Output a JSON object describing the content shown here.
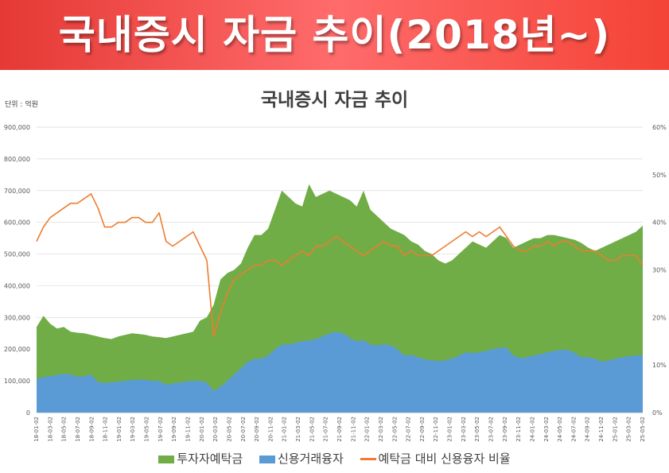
{
  "banner": {
    "text": "국내증시 자금 추이(2018년~)"
  },
  "chart_data": {
    "type": "area",
    "title": "국내증시 자금 추이",
    "unit_label": "단위 : 억원",
    "colors": {
      "deposits": "#70ad47",
      "credit": "#5b9bd5",
      "ratio": "#ed7d31"
    },
    "left_axis": {
      "min": 0,
      "max": 900000,
      "ticks": [
        "0",
        "100,000",
        "200,000",
        "300,000",
        "400,000",
        "500,000",
        "600,000",
        "700,000",
        "800,000",
        "900,000"
      ]
    },
    "right_axis": {
      "min": 0,
      "max": 60,
      "ticks": [
        "0%",
        "10%",
        "20%",
        "30%",
        "40%",
        "50%",
        "60%"
      ]
    },
    "x_tick_labels": [
      "18-01-02",
      "18-03-02",
      "18-05-02",
      "18-07-02",
      "18-09-02",
      "18-11-02",
      "19-01-02",
      "19-03-02",
      "19-05-02",
      "19-07-02",
      "19-09-02",
      "19-11-02",
      "20-01-02",
      "20-03-02",
      "20-05-02",
      "20-07-02",
      "20-09-02",
      "20-11-02",
      "21-01-02",
      "21-03-02",
      "21-05-02",
      "21-07-02",
      "21-09-02",
      "21-11-02",
      "22-01-02",
      "22-03-02",
      "22-05-02",
      "22-07-02",
      "22-09-02",
      "22-11-02",
      "23-01-02",
      "23-03-02",
      "23-05-02",
      "23-07-02",
      "23-09-02",
      "23-11-02",
      "24-01-02",
      "24-03-02",
      "24-05-02",
      "24-07-02",
      "24-09-02",
      "24-11-02",
      "25-01-02",
      "25-03-02",
      "25-05-02"
    ],
    "x": [
      "18-01",
      "18-02",
      "18-03",
      "18-04",
      "18-05",
      "18-06",
      "18-07",
      "18-08",
      "18-09",
      "18-10",
      "18-11",
      "18-12",
      "19-01",
      "19-02",
      "19-03",
      "19-04",
      "19-05",
      "19-06",
      "19-07",
      "19-08",
      "19-09",
      "19-10",
      "19-11",
      "19-12",
      "20-01",
      "20-02",
      "20-03",
      "20-04",
      "20-05",
      "20-06",
      "20-07",
      "20-08",
      "20-09",
      "20-10",
      "20-11",
      "20-12",
      "21-01",
      "21-02",
      "21-03",
      "21-04",
      "21-05",
      "21-06",
      "21-07",
      "21-08",
      "21-09",
      "21-10",
      "21-11",
      "21-12",
      "22-01",
      "22-02",
      "22-03",
      "22-04",
      "22-05",
      "22-06",
      "22-07",
      "22-08",
      "22-09",
      "22-10",
      "22-11",
      "22-12",
      "23-01",
      "23-02",
      "23-03",
      "23-04",
      "23-05",
      "23-06",
      "23-07",
      "23-08",
      "23-09",
      "23-10",
      "23-11",
      "23-12",
      "24-01",
      "24-02",
      "24-03",
      "24-04",
      "24-05",
      "24-06",
      "24-07",
      "24-08",
      "24-09",
      "24-10",
      "24-11",
      "24-12",
      "25-01",
      "25-02",
      "25-03",
      "25-04",
      "25-05",
      "25-06"
    ],
    "series": [
      {
        "name": "투자자예탁금",
        "kind": "area",
        "axis": "left",
        "values": [
          270000,
          305000,
          280000,
          265000,
          270000,
          255000,
          252000,
          250000,
          245000,
          240000,
          235000,
          232000,
          240000,
          245000,
          250000,
          248000,
          245000,
          240000,
          238000,
          235000,
          240000,
          245000,
          250000,
          255000,
          290000,
          300000,
          340000,
          420000,
          440000,
          450000,
          470000,
          520000,
          560000,
          560000,
          580000,
          640000,
          700000,
          680000,
          660000,
          650000,
          720000,
          680000,
          690000,
          700000,
          690000,
          680000,
          670000,
          650000,
          700000,
          640000,
          620000,
          600000,
          580000,
          570000,
          560000,
          540000,
          530000,
          510000,
          500000,
          480000,
          470000,
          480000,
          500000,
          520000,
          540000,
          530000,
          520000,
          540000,
          560000,
          550000,
          520000,
          530000,
          540000,
          550000,
          550000,
          560000,
          560000,
          555000,
          550000,
          545000,
          535000,
          520000,
          510000,
          520000,
          530000,
          540000,
          550000,
          560000,
          570000,
          590000
        ]
      },
      {
        "name": "신용거래융자",
        "kind": "area",
        "axis": "left",
        "values": [
          105000,
          112000,
          115000,
          118000,
          122000,
          120000,
          112000,
          115000,
          120000,
          96000,
          94000,
          95000,
          98000,
          100000,
          103000,
          104000,
          103000,
          100000,
          100000,
          88000,
          92000,
          95000,
          98000,
          100000,
          100000,
          95000,
          68000,
          82000,
          100000,
          120000,
          140000,
          160000,
          170000,
          170000,
          180000,
          200000,
          215000,
          215000,
          220000,
          225000,
          228000,
          232000,
          240000,
          250000,
          255000,
          250000,
          235000,
          225000,
          228000,
          215000,
          212000,
          215000,
          212000,
          200000,
          180000,
          182000,
          175000,
          168000,
          165000,
          162000,
          165000,
          170000,
          180000,
          190000,
          188000,
          190000,
          195000,
          200000,
          205000,
          205000,
          180000,
          172000,
          175000,
          180000,
          185000,
          190000,
          195000,
          198000,
          198000,
          188000,
          175000,
          175000,
          170000,
          160000,
          165000,
          170000,
          175000,
          178000,
          180000,
          182000
        ]
      },
      {
        "name": "예탁금 대비 신용융자 비율",
        "kind": "line",
        "axis": "right",
        "values": [
          36,
          39,
          41,
          42,
          43,
          44,
          44,
          45,
          46,
          43,
          39,
          39,
          40,
          40,
          41,
          41,
          40,
          40,
          42,
          36,
          35,
          36,
          37,
          38,
          35,
          32,
          16,
          21,
          25,
          28,
          29,
          30,
          31,
          31,
          32,
          32,
          31,
          32,
          33,
          34,
          33,
          35,
          35,
          36,
          37,
          36,
          35,
          34,
          33,
          34,
          35,
          36,
          35,
          35,
          33,
          34,
          33,
          33,
          33,
          34,
          35,
          36,
          37,
          38,
          37,
          38,
          37,
          38,
          39,
          37,
          35,
          34,
          34,
          35,
          35,
          36,
          35,
          36,
          36,
          35,
          34,
          34,
          34,
          33,
          32,
          32,
          33,
          33,
          33,
          31
        ]
      }
    ]
  },
  "legend": [
    {
      "label": "투자자예탁금",
      "type": "area"
    },
    {
      "label": "신용거래융자",
      "type": "area"
    },
    {
      "label": "예탁금 대비 신용융자 비율",
      "type": "line"
    }
  ]
}
